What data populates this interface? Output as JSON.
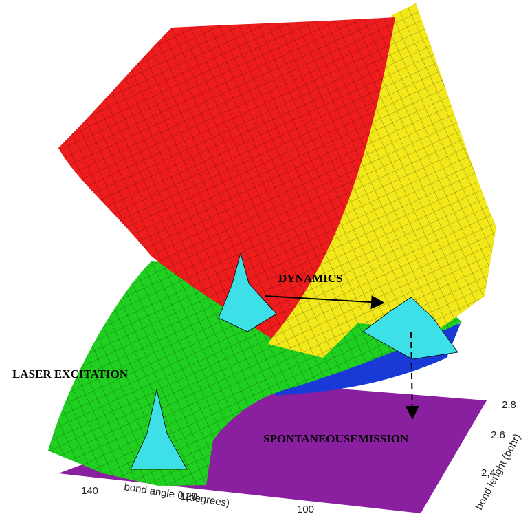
{
  "annotations": {
    "dynamics": "DYNAMICS",
    "laser_excitation": "LASER EXCITATION",
    "spontaneous_emission": "SPONTANEOUSEMISSION"
  },
  "axes": {
    "angle": {
      "label": "bond angle θ (degrees)",
      "ticks": [
        "140",
        "120",
        "100"
      ]
    },
    "length": {
      "label": "bond lenght (bohr)",
      "ticks": [
        "2,4",
        "2,6",
        "2,8"
      ]
    }
  }
}
